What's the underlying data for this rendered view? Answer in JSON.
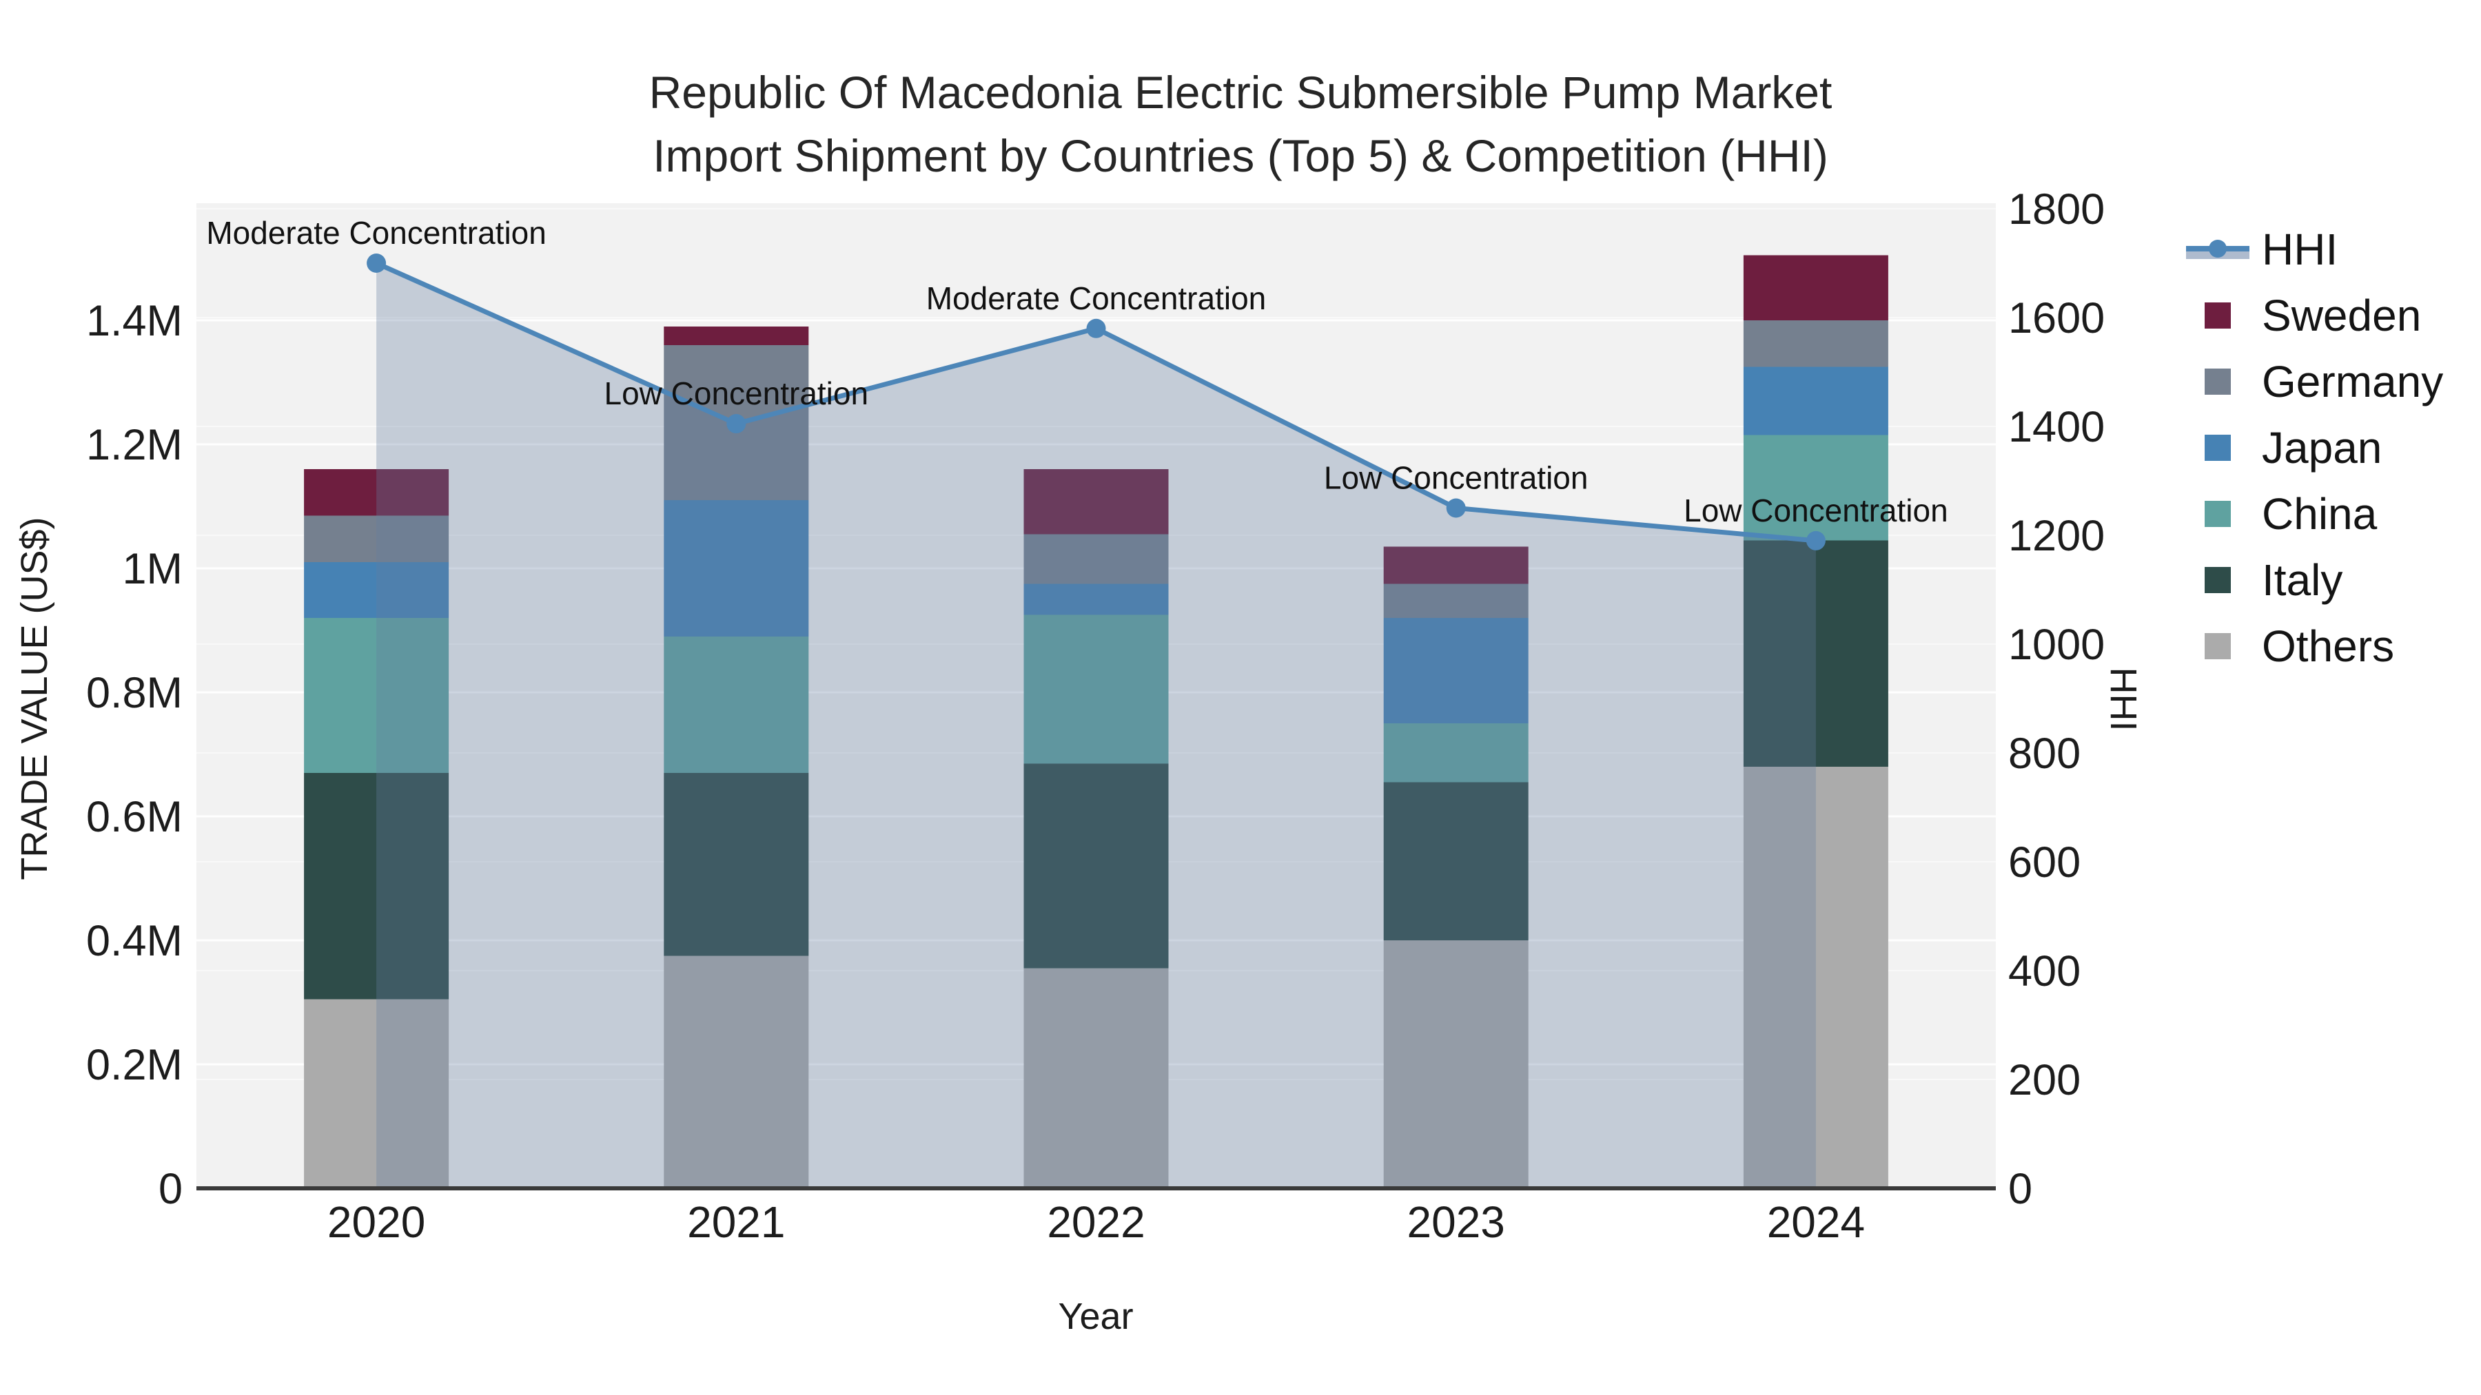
{
  "title": {
    "line1": "Republic Of Macedonia Electric Submersible Pump Market",
    "line2": "Import Shipment by Countries (Top 5) & Competition (HHI)"
  },
  "axes": {
    "x": {
      "title": "Year",
      "categories": [
        "2020",
        "2021",
        "2022",
        "2023",
        "2024"
      ]
    },
    "y_left": {
      "title": "TRADE VALUE (US$)",
      "tick_labels": [
        "0",
        "0.2M",
        "0.4M",
        "0.6M",
        "0.8M",
        "1M",
        "1.2M",
        "1.4M"
      ],
      "tick_values_musd": [
        0,
        0.2,
        0.4,
        0.6,
        0.8,
        1.0,
        1.2,
        1.4
      ],
      "range_musd": [
        0,
        1.59
      ]
    },
    "y_right": {
      "title": "HHI",
      "tick_labels": [
        "0",
        "200",
        "400",
        "600",
        "800",
        "1000",
        "1200",
        "1400",
        "1600",
        "1800"
      ],
      "tick_values": [
        0,
        200,
        400,
        600,
        800,
        1000,
        1200,
        1400,
        1600,
        1800
      ],
      "range": [
        0,
        1810
      ]
    }
  },
  "legend": {
    "items": [
      {
        "label": "HHI",
        "type": "line",
        "color": "#4d86b8"
      },
      {
        "label": "Sweden",
        "type": "bar",
        "color": "#6e1e3f"
      },
      {
        "label": "Germany",
        "type": "bar",
        "color": "#75808f"
      },
      {
        "label": "Japan",
        "type": "bar",
        "color": "#4682b4"
      },
      {
        "label": "China",
        "type": "bar",
        "color": "#5fa2a0"
      },
      {
        "label": "Italy",
        "type": "bar",
        "color": "#2e4c49"
      },
      {
        "label": "Others",
        "type": "bar",
        "color": "#ababab"
      }
    ]
  },
  "chart_data": {
    "type": "combo_stacked_bar_line",
    "title": "Republic Of Macedonia Electric Submersible Pump Market Import Shipment by Countries (Top 5) & Competition (HHI)",
    "categories": [
      "2020",
      "2021",
      "2022",
      "2023",
      "2024"
    ],
    "bar_unit": "million US$",
    "stack_order_bottom_to_top": [
      "Others",
      "Italy",
      "China",
      "Japan",
      "Germany",
      "Sweden"
    ],
    "series": [
      {
        "name": "Sweden",
        "color": "#6e1e3f",
        "values": [
          0.075,
          0.03,
          0.105,
          0.06,
          0.105
        ]
      },
      {
        "name": "Germany",
        "color": "#75808f",
        "values": [
          0.075,
          0.25,
          0.08,
          0.055,
          0.075
        ]
      },
      {
        "name": "Japan",
        "color": "#4682b4",
        "values": [
          0.09,
          0.22,
          0.05,
          0.17,
          0.11
        ]
      },
      {
        "name": "China",
        "color": "#5fa2a0",
        "values": [
          0.25,
          0.22,
          0.24,
          0.095,
          0.17
        ]
      },
      {
        "name": "Italy",
        "color": "#2e4c49",
        "values": [
          0.365,
          0.295,
          0.33,
          0.255,
          0.365
        ]
      },
      {
        "name": "Others",
        "color": "#ababab",
        "values": [
          0.305,
          0.375,
          0.355,
          0.4,
          0.68
        ]
      }
    ],
    "bar_totals_musd": [
      1.16,
      1.39,
      1.16,
      1.035,
      1.505
    ],
    "line_series": {
      "name": "HHI",
      "axis": "right",
      "color": "#4d86b8",
      "area_fill": "rgba(100,124,158,0.32)",
      "values": [
        1700,
        1405,
        1580,
        1250,
        1190
      ]
    },
    "annotations": [
      {
        "category": "2020",
        "text": "Moderate Concentration"
      },
      {
        "category": "2021",
        "text": "Low Concentration"
      },
      {
        "category": "2022",
        "text": "Moderate Concentration"
      },
      {
        "category": "2023",
        "text": "Low Concentration"
      },
      {
        "category": "2024",
        "text": "Low Concentration"
      }
    ],
    "legend_position": "right",
    "grid": true
  },
  "style": {
    "plot_bg": "#f2f2f2",
    "grid_color": "#ffffff",
    "axis_line_color": "#3a3a3a",
    "tick_text_color": "#1c1c1c",
    "annotation_color": "#111111"
  }
}
